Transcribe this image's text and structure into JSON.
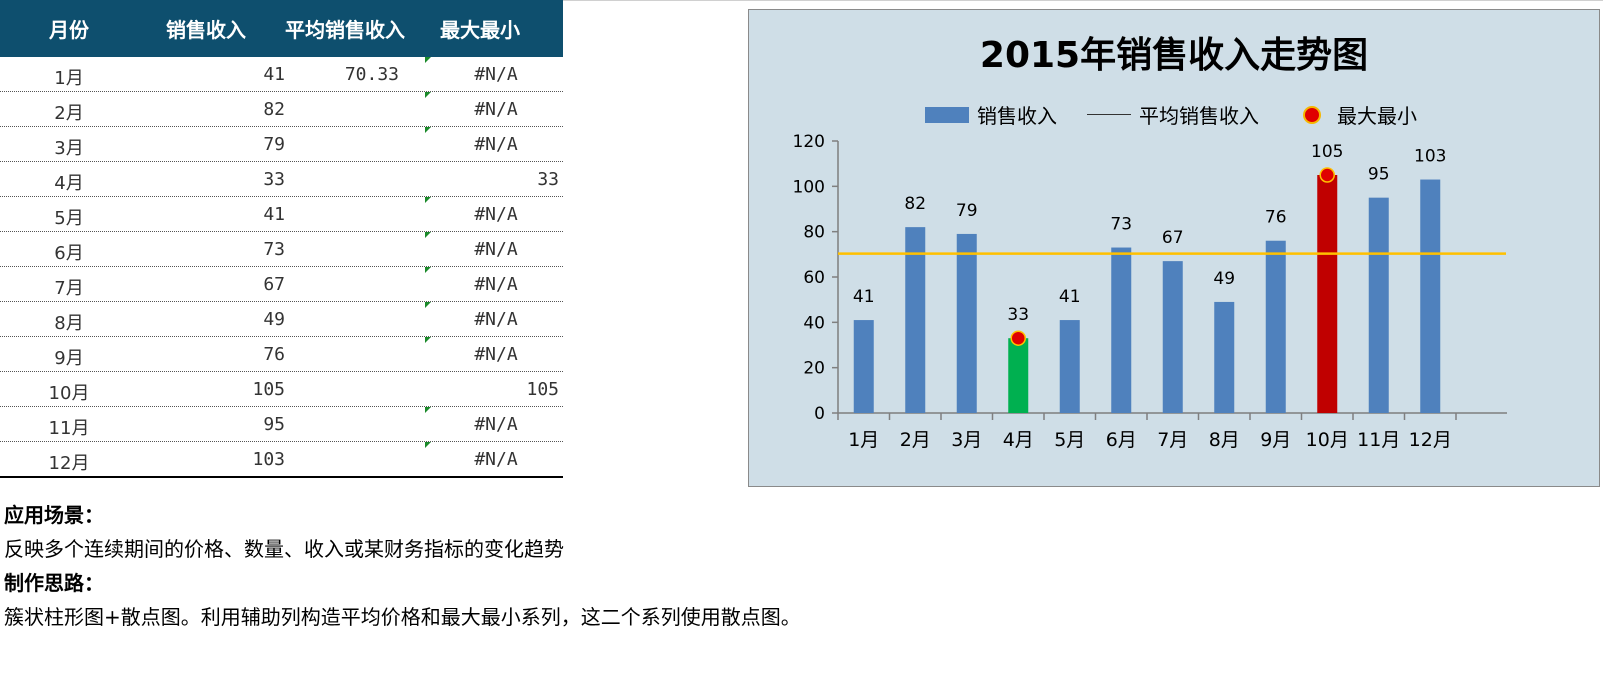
{
  "table": {
    "headers": [
      "月份",
      "销售收入",
      "平均销售收入",
      "最大最小"
    ],
    "rows": [
      {
        "month": "1月",
        "sales": "41",
        "avg": "70.33",
        "minmax": "#N/A"
      },
      {
        "month": "2月",
        "sales": "82",
        "avg": "",
        "minmax": "#N/A"
      },
      {
        "month": "3月",
        "sales": "79",
        "avg": "",
        "minmax": "#N/A"
      },
      {
        "month": "4月",
        "sales": "33",
        "avg": "",
        "minmax": "33"
      },
      {
        "month": "5月",
        "sales": "41",
        "avg": "",
        "minmax": "#N/A"
      },
      {
        "month": "6月",
        "sales": "73",
        "avg": "",
        "minmax": "#N/A"
      },
      {
        "month": "7月",
        "sales": "67",
        "avg": "",
        "minmax": "#N/A"
      },
      {
        "month": "8月",
        "sales": "49",
        "avg": "",
        "minmax": "#N/A"
      },
      {
        "month": "9月",
        "sales": "76",
        "avg": "",
        "minmax": "#N/A"
      },
      {
        "month": "10月",
        "sales": "105",
        "avg": "",
        "minmax": "105"
      },
      {
        "month": "11月",
        "sales": "95",
        "avg": "",
        "minmax": "#N/A"
      },
      {
        "month": "12月",
        "sales": "103",
        "avg": "",
        "minmax": "#N/A"
      }
    ]
  },
  "notes": {
    "scenario_label": "应用场景：",
    "scenario_text": "反映多个连续期间的价格、数量、收入或某财务指标的变化趋势",
    "method_label": "制作思路：",
    "method_text": "簇状柱形图+散点图。利用辅助列构造平均价格和最大最小系列，这二个系列使用散点图。"
  },
  "chart_data": {
    "type": "bar",
    "title": "2015年销售收入走势图",
    "categories": [
      "1月",
      "2月",
      "3月",
      "4月",
      "5月",
      "6月",
      "7月",
      "8月",
      "9月",
      "10月",
      "11月",
      "12月"
    ],
    "series": [
      {
        "name": "销售收入",
        "type": "bar",
        "values": [
          41,
          82,
          79,
          33,
          41,
          73,
          67,
          49,
          76,
          105,
          95,
          103
        ]
      },
      {
        "name": "平均销售收入",
        "type": "line",
        "value": 70.33
      },
      {
        "name": "最大最小",
        "type": "scatter",
        "points": [
          {
            "category": "4月",
            "value": 33
          },
          {
            "category": "10月",
            "value": 105
          }
        ]
      }
    ],
    "ylim": [
      0,
      120
    ],
    "yticks": [
      0,
      20,
      40,
      60,
      80,
      100,
      120
    ],
    "legend_position": "top",
    "grid": false,
    "colors": {
      "bar": "#4f81bd",
      "min_bar": "#00b050",
      "max_bar": "#c00000",
      "average_line": "#ffc000",
      "marker": "#e00000",
      "panel_bg": "#cfdee7"
    }
  },
  "colors": {
    "header_bg": "#0e4f6e",
    "header_text": "#ffffff"
  }
}
